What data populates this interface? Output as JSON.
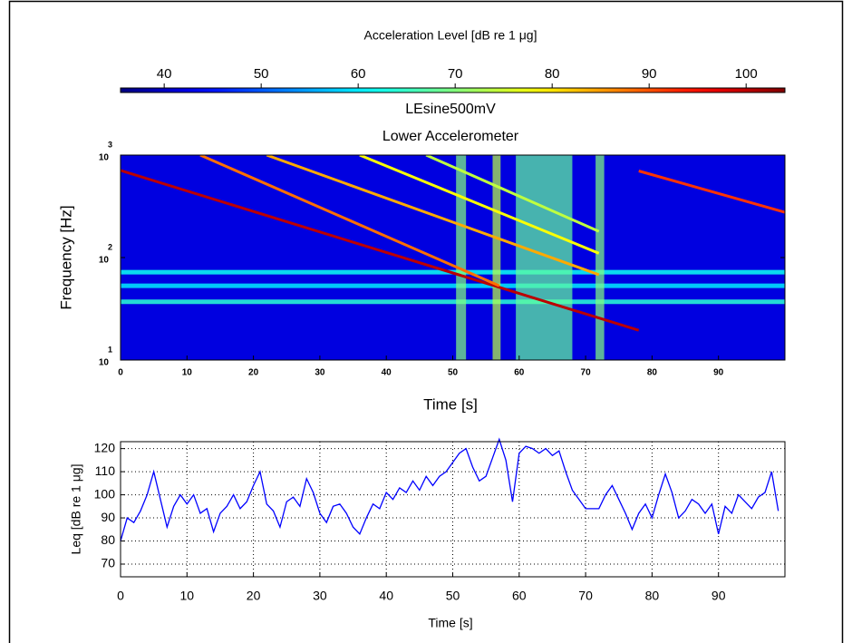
{
  "chart_data": [
    {
      "type": "spectrogram",
      "title": "LEsine500mV",
      "subtitle": "Lower Accelerometer",
      "xlabel": "Time   [s]",
      "ylabel": "Frequency   [Hz]",
      "colorbar": {
        "title": "Acceleration Level   [dB re 1 μg]",
        "clim": [
          35.5,
          104
        ],
        "ticks": [
          40,
          50,
          60,
          70,
          80,
          90,
          100
        ]
      },
      "xlim": [
        0,
        100
      ],
      "xticks": [
        0,
        10,
        20,
        30,
        40,
        50,
        60,
        70,
        80,
        90
      ],
      "ylim": [
        10,
        1000
      ],
      "log_y": true,
      "yticks": [
        {
          "value": 10,
          "label": "10",
          "exponent": "1"
        },
        {
          "value": 100,
          "label": "10",
          "exponent": "2"
        },
        {
          "value": 1000,
          "label": "10",
          "exponent": "3"
        }
      ],
      "background_level": 42,
      "vertical_bands": [
        {
          "t": [
            50.5,
            52
          ],
          "level": 70
        },
        {
          "t": [
            56,
            57.2
          ],
          "level": 74
        },
        {
          "t": [
            59.5,
            68
          ],
          "level": 68
        },
        {
          "t": [
            71.5,
            72.8
          ],
          "level": 70
        }
      ],
      "horizontal_bands": [
        {
          "f": 72,
          "level": 62
        },
        {
          "f": 53,
          "level": 60
        },
        {
          "f": 37,
          "level": 64
        }
      ],
      "sweeps": [
        {
          "t": [
            0,
            78
          ],
          "f": [
            708,
            19.5
          ],
          "level": 100
        },
        {
          "t": [
            78,
            100
          ],
          "f": [
            700,
            277
          ],
          "level": 92
        },
        {
          "t": [
            12,
            57
          ],
          "f": [
            1000,
            53
          ],
          "level": 88
        },
        {
          "t": [
            22,
            72
          ],
          "f": [
            1000,
            68
          ],
          "level": 84
        },
        {
          "t": [
            36,
            72
          ],
          "f": [
            1000,
            110
          ],
          "level": 78
        },
        {
          "t": [
            46,
            72
          ],
          "f": [
            1000,
            180
          ],
          "level": 74
        }
      ]
    },
    {
      "type": "line",
      "xlabel": "Time   [s]",
      "ylabel": "Leq  [dB re 1 μg]",
      "xlim": [
        0,
        100
      ],
      "xticks": [
        0,
        10,
        20,
        30,
        40,
        50,
        60,
        70,
        80,
        90
      ],
      "ylim": [
        64.5,
        123
      ],
      "yticks": [
        70,
        80,
        90,
        100,
        110,
        120
      ],
      "grid": true,
      "color": "#0000ff",
      "x": [
        0,
        1,
        2,
        3,
        4,
        5,
        6,
        7,
        8,
        9,
        10,
        11,
        12,
        13,
        14,
        15,
        16,
        17,
        18,
        19,
        20,
        21,
        22,
        23,
        24,
        25,
        26,
        27,
        28,
        29,
        30,
        31,
        32,
        33,
        34,
        35,
        36,
        37,
        38,
        39,
        40,
        41,
        42,
        43,
        44,
        45,
        46,
        47,
        48,
        49,
        50,
        51,
        52,
        53,
        54,
        55,
        56,
        57,
        58,
        59,
        60,
        61,
        62,
        63,
        64,
        65,
        66,
        67,
        68,
        69,
        70,
        71,
        72,
        73,
        74,
        75,
        76,
        77,
        78,
        79,
        80,
        81,
        82,
        83,
        84,
        85,
        86,
        87,
        88,
        89,
        90,
        91,
        92,
        93,
        94,
        95,
        96,
        97,
        98,
        99
      ],
      "values": [
        80,
        90,
        88,
        93,
        100,
        110,
        98,
        86,
        95,
        100,
        96,
        100,
        92,
        94,
        84,
        92,
        95,
        100,
        94,
        97,
        104,
        110,
        96,
        93,
        86,
        97,
        99,
        95,
        107,
        101,
        92,
        88,
        95,
        96,
        92,
        86,
        83,
        90,
        96,
        94,
        101,
        98,
        103,
        101,
        106,
        102,
        108,
        104,
        108,
        110,
        114,
        118,
        120,
        112,
        106,
        108,
        116,
        124,
        115,
        97,
        118,
        121,
        120,
        118,
        120,
        117,
        119,
        110,
        102,
        98,
        94,
        94,
        94,
        100,
        104,
        98,
        92,
        85,
        92,
        96,
        90,
        100,
        109,
        101,
        90,
        93,
        98,
        96,
        92,
        96,
        83,
        95,
        92,
        100,
        97,
        94,
        99,
        101,
        110,
        93
      ]
    }
  ]
}
